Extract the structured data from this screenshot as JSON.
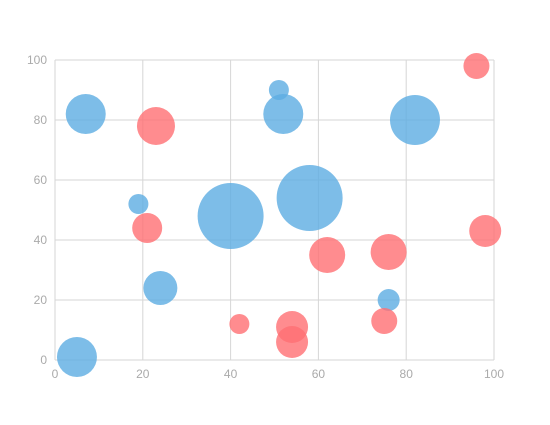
{
  "chart_data": {
    "type": "scatter",
    "variant": "bubble",
    "x_ticks": [
      "0",
      "20",
      "40",
      "60",
      "80",
      "100"
    ],
    "y_ticks": [
      "0",
      "20",
      "40",
      "60",
      "80",
      "100"
    ],
    "xlim": [
      0,
      100
    ],
    "ylim": [
      0,
      100
    ],
    "grid": true,
    "series": [
      {
        "color": "#5dade2",
        "points": [
          {
            "x": 7,
            "y": 82,
            "r": 20
          },
          {
            "x": 5,
            "y": 1,
            "r": 20
          },
          {
            "x": 19,
            "y": 52,
            "r": 10
          },
          {
            "x": 24,
            "y": 24,
            "r": 17
          },
          {
            "x": 40,
            "y": 48,
            "r": 33
          },
          {
            "x": 51,
            "y": 90,
            "r": 10
          },
          {
            "x": 52,
            "y": 82,
            "r": 20
          },
          {
            "x": 58,
            "y": 54,
            "r": 33
          },
          {
            "x": 76,
            "y": 20,
            "r": 11
          },
          {
            "x": 82,
            "y": 80,
            "r": 25
          }
        ]
      },
      {
        "color": "#ff6f73",
        "points": [
          {
            "x": 23,
            "y": 78,
            "r": 19
          },
          {
            "x": 21,
            "y": 44,
            "r": 15
          },
          {
            "x": 42,
            "y": 12,
            "r": 10
          },
          {
            "x": 54,
            "y": 11,
            "r": 16
          },
          {
            "x": 54,
            "y": 6,
            "r": 16
          },
          {
            "x": 62,
            "y": 35,
            "r": 18
          },
          {
            "x": 75,
            "y": 13,
            "r": 13
          },
          {
            "x": 76,
            "y": 36,
            "r": 18
          },
          {
            "x": 96,
            "y": 98,
            "r": 13
          },
          {
            "x": 98,
            "y": 43,
            "r": 16
          }
        ]
      }
    ]
  }
}
